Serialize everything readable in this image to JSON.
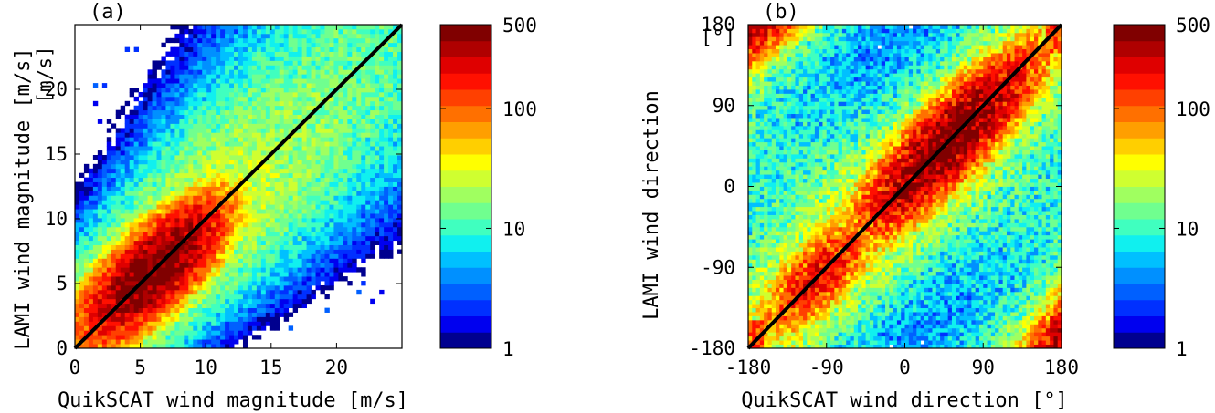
{
  "chart_data": [
    {
      "type": "heatmap",
      "panel_label": "(a)",
      "xlabel": "QuikSCAT wind magnitude [m/s]",
      "ylabel": "LAMI wind magnitude [m/s]",
      "xlim": [
        0,
        25
      ],
      "ylim": [
        0,
        25
      ],
      "xticks": [
        0,
        5,
        10,
        15,
        20
      ],
      "xtick_labels": [
        "0",
        "5",
        "10",
        "15",
        "20"
      ],
      "yticks": [
        0,
        5,
        10,
        15,
        20
      ],
      "ytick_labels": [
        "0",
        "5",
        "10",
        "15",
        "20"
      ],
      "yunit_tick_label": "[m/s]",
      "density": {
        "kind": "joint-distribution",
        "peak_at": [
          6,
          6
        ],
        "orientation_deg": 45,
        "spread_along": 4.2,
        "spread_across": 1.6,
        "peak_count": 500,
        "scatter_extent": [
          [
            0,
            25
          ],
          [
            0,
            25
          ]
        ]
      },
      "reference_line": {
        "from": [
          0,
          0
        ],
        "to": [
          25,
          25
        ],
        "color": "#000000"
      },
      "colorbar": {
        "scale": "log",
        "range": [
          1,
          500
        ],
        "ticks": [
          1,
          10,
          100,
          500
        ],
        "tick_labels": [
          "1",
          "10",
          "100",
          "500"
        ],
        "levels": 20
      }
    },
    {
      "type": "heatmap",
      "panel_label": "(b)",
      "xlabel": "QuikSCAT wind direction [°]",
      "ylabel": "LAMI wind direction",
      "xlim": [
        -180,
        180
      ],
      "ylim": [
        -180,
        180
      ],
      "xticks": [
        -180,
        -90,
        0,
        90,
        180
      ],
      "xtick_labels": [
        "-180",
        "-90",
        "0",
        "90",
        "180"
      ],
      "yticks": [
        -180,
        -90,
        0,
        90,
        180
      ],
      "ytick_labels": [
        "-180",
        "-90",
        "0",
        "90",
        "180"
      ],
      "yunit_tick_label": "[°]",
      "density": {
        "kind": "circular-joint-distribution",
        "peak_at": [
          50,
          50
        ],
        "secondary_peak": [
          -100,
          -100
        ],
        "orientation_deg": 45,
        "peak_count": 500
      },
      "reference_line": {
        "from": [
          -180,
          -180
        ],
        "to": [
          180,
          180
        ],
        "color": "#000000"
      },
      "colorbar": {
        "scale": "log",
        "range": [
          1,
          500
        ],
        "ticks": [
          1,
          10,
          100,
          500
        ],
        "tick_labels": [
          "1",
          "10",
          "100",
          "500"
        ],
        "levels": 20
      }
    }
  ],
  "colormap": [
    "#00008f",
    "#0000ef",
    "#0030ff",
    "#0060ff",
    "#0090ff",
    "#00c0ff",
    "#10f0ef",
    "#40ffbf",
    "#70ff8f",
    "#a0ff60",
    "#cfff30",
    "#ffff00",
    "#ffcf00",
    "#ff9f00",
    "#ff7000",
    "#ff4000",
    "#ff1000",
    "#df0000",
    "#af0000",
    "#800000"
  ]
}
